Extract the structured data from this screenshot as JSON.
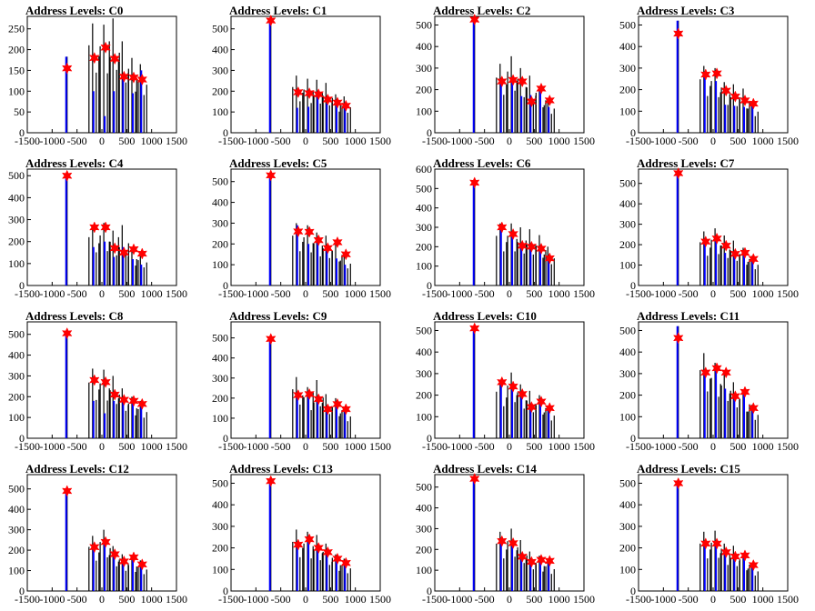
{
  "title_prefix": "Address Levels: ",
  "colors": {
    "signal": "#000000",
    "fit": "#0000ff",
    "peak_marker": "#ff0000",
    "axis": "#000000"
  },
  "chart_data": [
    {
      "type": "bar",
      "title": "Address Levels: C0",
      "channel": "C0",
      "xlim": [
        -1500,
        1500
      ],
      "ylim": [
        0,
        280
      ],
      "yticks": [
        0,
        50,
        100,
        150,
        200,
        250
      ],
      "xticks": [
        -1500,
        -1000,
        -500,
        0,
        500,
        1000,
        1500
      ],
      "peaks": [
        {
          "x": -700,
          "y": 155
        },
        {
          "x": -150,
          "y": 180
        },
        {
          "x": 75,
          "y": 205
        },
        {
          "x": 260,
          "y": 178
        },
        {
          "x": 445,
          "y": 135
        },
        {
          "x": 640,
          "y": 133
        },
        {
          "x": 810,
          "y": 128
        }
      ],
      "signal_max": [
        183,
        263,
        260,
        275,
        220,
        180,
        165
      ],
      "fit_max": [
        183,
        100,
        40,
        100,
        130,
        95,
        150
      ]
    },
    {
      "type": "bar",
      "title": "Address Levels: C1",
      "channel": "C1",
      "xlim": [
        -1500,
        1500
      ],
      "ylim": [
        0,
        560
      ],
      "yticks": [
        0,
        100,
        200,
        300,
        400,
        500
      ],
      "xticks": [
        -1500,
        -1000,
        -500,
        0,
        500,
        1000,
        1500
      ],
      "peaks": [
        {
          "x": -700,
          "y": 540
        },
        {
          "x": -150,
          "y": 195
        },
        {
          "x": 75,
          "y": 190
        },
        {
          "x": 260,
          "y": 185
        },
        {
          "x": 445,
          "y": 160
        },
        {
          "x": 640,
          "y": 145
        },
        {
          "x": 810,
          "y": 130
        }
      ],
      "signal_max": [
        540,
        275,
        260,
        255,
        240,
        185,
        175
      ],
      "fit_max": [
        540,
        120,
        125,
        195,
        140,
        130,
        120
      ]
    },
    {
      "type": "bar",
      "title": "Address Levels: C2",
      "channel": "C2",
      "xlim": [
        -1500,
        1500
      ],
      "ylim": [
        0,
        540
      ],
      "yticks": [
        0,
        100,
        200,
        300,
        400,
        500
      ],
      "xticks": [
        -1500,
        -1000,
        -500,
        0,
        500,
        1000,
        1500
      ],
      "peaks": [
        {
          "x": -700,
          "y": 525
        },
        {
          "x": -150,
          "y": 238
        },
        {
          "x": 75,
          "y": 245
        },
        {
          "x": 260,
          "y": 238
        },
        {
          "x": 445,
          "y": 145
        },
        {
          "x": 640,
          "y": 205
        },
        {
          "x": 810,
          "y": 150
        }
      ],
      "signal_max": [
        525,
        320,
        355,
        300,
        265,
        215,
        160
      ],
      "fit_max": [
        525,
        230,
        240,
        170,
        175,
        200,
        120
      ]
    },
    {
      "type": "bar",
      "title": "Address Levels: C3",
      "channel": "C3",
      "xlim": [
        -1500,
        1500
      ],
      "ylim": [
        0,
        540
      ],
      "yticks": [
        0,
        100,
        200,
        300,
        400,
        500
      ],
      "xticks": [
        -1500,
        -1000,
        -500,
        0,
        500,
        1000,
        1500
      ],
      "peaks": [
        {
          "x": -700,
          "y": 460
        },
        {
          "x": -150,
          "y": 270
        },
        {
          "x": 75,
          "y": 275
        },
        {
          "x": 260,
          "y": 195
        },
        {
          "x": 445,
          "y": 168
        },
        {
          "x": 640,
          "y": 150
        },
        {
          "x": 810,
          "y": 135
        }
      ],
      "signal_max": [
        520,
        310,
        300,
        235,
        225,
        205,
        140
      ],
      "fit_max": [
        520,
        270,
        240,
        130,
        125,
        120,
        130
      ]
    },
    {
      "type": "bar",
      "title": "Address Levels: C4",
      "channel": "C4",
      "xlim": [
        -1500,
        1500
      ],
      "ylim": [
        0,
        530
      ],
      "yticks": [
        0,
        100,
        200,
        300,
        400,
        500
      ],
      "xticks": [
        -1500,
        -1000,
        -500,
        0,
        500,
        1000,
        1500
      ],
      "peaks": [
        {
          "x": -700,
          "y": 500
        },
        {
          "x": -150,
          "y": 265
        },
        {
          "x": 75,
          "y": 265
        },
        {
          "x": 260,
          "y": 170
        },
        {
          "x": 445,
          "y": 150
        },
        {
          "x": 640,
          "y": 165
        },
        {
          "x": 810,
          "y": 145
        }
      ],
      "signal_max": [
        500,
        275,
        285,
        250,
        275,
        165,
        150
      ],
      "fit_max": [
        500,
        175,
        200,
        130,
        175,
        120,
        95
      ]
    },
    {
      "type": "bar",
      "title": "Address Levels: C5",
      "channel": "C5",
      "xlim": [
        -1500,
        1500
      ],
      "ylim": [
        0,
        560
      ],
      "yticks": [
        0,
        100,
        200,
        300,
        400,
        500
      ],
      "xticks": [
        -1500,
        -1000,
        -500,
        0,
        500,
        1000,
        1500
      ],
      "peaks": [
        {
          "x": -700,
          "y": 530
        },
        {
          "x": -150,
          "y": 260
        },
        {
          "x": 75,
          "y": 258
        },
        {
          "x": 260,
          "y": 218
        },
        {
          "x": 445,
          "y": 180
        },
        {
          "x": 640,
          "y": 208
        },
        {
          "x": 810,
          "y": 150
        }
      ],
      "signal_max": [
        530,
        300,
        290,
        255,
        240,
        210,
        150
      ],
      "fit_max": [
        530,
        290,
        200,
        210,
        175,
        130,
        100
      ]
    },
    {
      "type": "bar",
      "title": "Address Levels: C6",
      "channel": "C6",
      "xlim": [
        -1500,
        1500
      ],
      "ylim": [
        0,
        600
      ],
      "yticks": [
        0,
        100,
        200,
        300,
        400,
        500,
        600
      ],
      "xticks": [
        -1500,
        -1000,
        -500,
        0,
        500,
        1000,
        1500
      ],
      "peaks": [
        {
          "x": -700,
          "y": 530
        },
        {
          "x": -150,
          "y": 300
        },
        {
          "x": 75,
          "y": 265
        },
        {
          "x": 260,
          "y": 205
        },
        {
          "x": 445,
          "y": 200
        },
        {
          "x": 640,
          "y": 190
        },
        {
          "x": 810,
          "y": 140
        }
      ],
      "signal_max": [
        530,
        320,
        320,
        300,
        290,
        260,
        200
      ],
      "fit_max": [
        530,
        290,
        270,
        210,
        210,
        180,
        140
      ]
    },
    {
      "type": "bar",
      "title": "Address Levels: C7",
      "channel": "C7",
      "xlim": [
        -1500,
        1500
      ],
      "ylim": [
        0,
        570
      ],
      "yticks": [
        0,
        100,
        200,
        300,
        400,
        500
      ],
      "xticks": [
        -1500,
        -1000,
        -500,
        0,
        500,
        1000,
        1500
      ],
      "peaks": [
        {
          "x": -700,
          "y": 550
        },
        {
          "x": -150,
          "y": 215
        },
        {
          "x": 75,
          "y": 230
        },
        {
          "x": 260,
          "y": 195
        },
        {
          "x": 445,
          "y": 155
        },
        {
          "x": 640,
          "y": 160
        },
        {
          "x": 810,
          "y": 130
        }
      ],
      "signal_max": [
        550,
        265,
        280,
        245,
        220,
        185,
        145
      ],
      "fit_max": [
        550,
        210,
        220,
        160,
        150,
        160,
        125
      ]
    },
    {
      "type": "bar",
      "title": "Address Levels: C8",
      "channel": "C8",
      "xlim": [
        -1500,
        1500
      ],
      "ylim": [
        0,
        560
      ],
      "yticks": [
        0,
        100,
        200,
        300,
        400,
        500
      ],
      "xticks": [
        -1500,
        -1000,
        -500,
        0,
        500,
        1000,
        1500
      ],
      "peaks": [
        {
          "x": -700,
          "y": 505
        },
        {
          "x": -150,
          "y": 280
        },
        {
          "x": 75,
          "y": 270
        },
        {
          "x": 260,
          "y": 210
        },
        {
          "x": 445,
          "y": 185
        },
        {
          "x": 640,
          "y": 180
        },
        {
          "x": 810,
          "y": 165
        }
      ],
      "signal_max": [
        505,
        335,
        330,
        300,
        240,
        200,
        180
      ],
      "fit_max": [
        505,
        180,
        120,
        180,
        180,
        170,
        160
      ]
    },
    {
      "type": "bar",
      "title": "Address Levels: C9",
      "channel": "C9",
      "xlim": [
        -1500,
        1500
      ],
      "ylim": [
        0,
        580
      ],
      "yticks": [
        0,
        100,
        200,
        300,
        400,
        500
      ],
      "xticks": [
        -1500,
        -1000,
        -500,
        0,
        500,
        1000,
        1500
      ],
      "peaks": [
        {
          "x": -700,
          "y": 495
        },
        {
          "x": -150,
          "y": 215
        },
        {
          "x": 75,
          "y": 220
        },
        {
          "x": 260,
          "y": 195
        },
        {
          "x": 445,
          "y": 145
        },
        {
          "x": 640,
          "y": 170
        },
        {
          "x": 810,
          "y": 145
        }
      ],
      "signal_max": [
        495,
        305,
        255,
        290,
        220,
        200,
        155
      ],
      "fit_max": [
        495,
        210,
        210,
        190,
        140,
        160,
        140
      ]
    },
    {
      "type": "bar",
      "title": "Address Levels: C10",
      "channel": "C10",
      "xlim": [
        -1500,
        1500
      ],
      "ylim": [
        0,
        540
      ],
      "yticks": [
        0,
        100,
        200,
        300,
        400,
        500
      ],
      "xticks": [
        -1500,
        -1000,
        -500,
        0,
        500,
        1000,
        1500
      ],
      "peaks": [
        {
          "x": -700,
          "y": 510
        },
        {
          "x": -150,
          "y": 260
        },
        {
          "x": 75,
          "y": 240
        },
        {
          "x": 260,
          "y": 205
        },
        {
          "x": 445,
          "y": 145
        },
        {
          "x": 640,
          "y": 170
        },
        {
          "x": 810,
          "y": 140
        }
      ],
      "signal_max": [
        510,
        270,
        305,
        250,
        220,
        200,
        150
      ],
      "fit_max": [
        510,
        250,
        230,
        190,
        140,
        160,
        140
      ]
    },
    {
      "type": "bar",
      "title": "Address Levels: C11",
      "channel": "C11",
      "xlim": [
        -1500,
        1500
      ],
      "ylim": [
        0,
        540
      ],
      "yticks": [
        0,
        100,
        200,
        300,
        400,
        500
      ],
      "xticks": [
        -1500,
        -1000,
        -500,
        0,
        500,
        1000,
        1500
      ],
      "peaks": [
        {
          "x": -700,
          "y": 465
        },
        {
          "x": -150,
          "y": 305
        },
        {
          "x": 75,
          "y": 325
        },
        {
          "x": 260,
          "y": 305
        },
        {
          "x": 445,
          "y": 195
        },
        {
          "x": 640,
          "y": 215
        },
        {
          "x": 810,
          "y": 140
        }
      ],
      "signal_max": [
        520,
        395,
        350,
        315,
        260,
        225,
        155
      ],
      "fit_max": [
        520,
        300,
        320,
        230,
        190,
        215,
        140
      ]
    },
    {
      "type": "bar",
      "title": "Address Levels: C12",
      "channel": "C12",
      "xlim": [
        -1500,
        1500
      ],
      "ylim": [
        0,
        570
      ],
      "yticks": [
        0,
        100,
        200,
        300,
        400,
        500
      ],
      "xticks": [
        -1500,
        -1000,
        -500,
        0,
        500,
        1000,
        1500
      ],
      "peaks": [
        {
          "x": -700,
          "y": 490
        },
        {
          "x": -150,
          "y": 215
        },
        {
          "x": 75,
          "y": 240
        },
        {
          "x": 260,
          "y": 180
        },
        {
          "x": 445,
          "y": 145
        },
        {
          "x": 640,
          "y": 165
        },
        {
          "x": 810,
          "y": 130
        }
      ],
      "signal_max": [
        490,
        270,
        300,
        220,
        180,
        170,
        150
      ],
      "fit_max": [
        490,
        210,
        240,
        175,
        140,
        160,
        130
      ]
    },
    {
      "type": "bar",
      "title": "Address Levels: C13",
      "channel": "C13",
      "xlim": [
        -1500,
        1500
      ],
      "ylim": [
        0,
        540
      ],
      "yticks": [
        0,
        100,
        200,
        300,
        400,
        500
      ],
      "xticks": [
        -1500,
        -1000,
        -500,
        0,
        500,
        1000,
        1500
      ],
      "peaks": [
        {
          "x": -700,
          "y": 510
        },
        {
          "x": -150,
          "y": 215
        },
        {
          "x": 75,
          "y": 240
        },
        {
          "x": 260,
          "y": 200
        },
        {
          "x": 445,
          "y": 180
        },
        {
          "x": 640,
          "y": 150
        },
        {
          "x": 810,
          "y": 130
        }
      ],
      "signal_max": [
        510,
        285,
        275,
        260,
        220,
        170,
        150
      ],
      "fit_max": [
        510,
        200,
        235,
        200,
        180,
        145,
        125
      ]
    },
    {
      "type": "bar",
      "title": "Address Levels: C14",
      "channel": "C14",
      "xlim": [
        -1500,
        1500
      ],
      "ylim": [
        0,
        560
      ],
      "yticks": [
        0,
        100,
        200,
        300,
        400,
        500
      ],
      "xticks": [
        -1500,
        -1000,
        -500,
        0,
        500,
        1000,
        1500
      ],
      "peaks": [
        {
          "x": -700,
          "y": 540
        },
        {
          "x": -150,
          "y": 240
        },
        {
          "x": 75,
          "y": 230
        },
        {
          "x": 260,
          "y": 165
        },
        {
          "x": 445,
          "y": 140
        },
        {
          "x": 640,
          "y": 150
        },
        {
          "x": 810,
          "y": 145
        }
      ],
      "signal_max": [
        540,
        285,
        300,
        245,
        190,
        170,
        150
      ],
      "fit_max": [
        540,
        230,
        225,
        160,
        135,
        145,
        140
      ]
    },
    {
      "type": "bar",
      "title": "Address Levels: C15",
      "channel": "C15",
      "xlim": [
        -1500,
        1500
      ],
      "ylim": [
        0,
        540
      ],
      "yticks": [
        0,
        100,
        200,
        300,
        400,
        500
      ],
      "xticks": [
        -1500,
        -1000,
        -500,
        0,
        500,
        1000,
        1500
      ],
      "peaks": [
        {
          "x": -700,
          "y": 500
        },
        {
          "x": -150,
          "y": 220
        },
        {
          "x": 75,
          "y": 220
        },
        {
          "x": 260,
          "y": 180
        },
        {
          "x": 445,
          "y": 160
        },
        {
          "x": 640,
          "y": 165
        },
        {
          "x": 810,
          "y": 120
        }
      ],
      "signal_max": [
        500,
        275,
        280,
        220,
        210,
        175,
        130
      ],
      "fit_max": [
        500,
        210,
        215,
        175,
        155,
        160,
        120
      ]
    }
  ]
}
